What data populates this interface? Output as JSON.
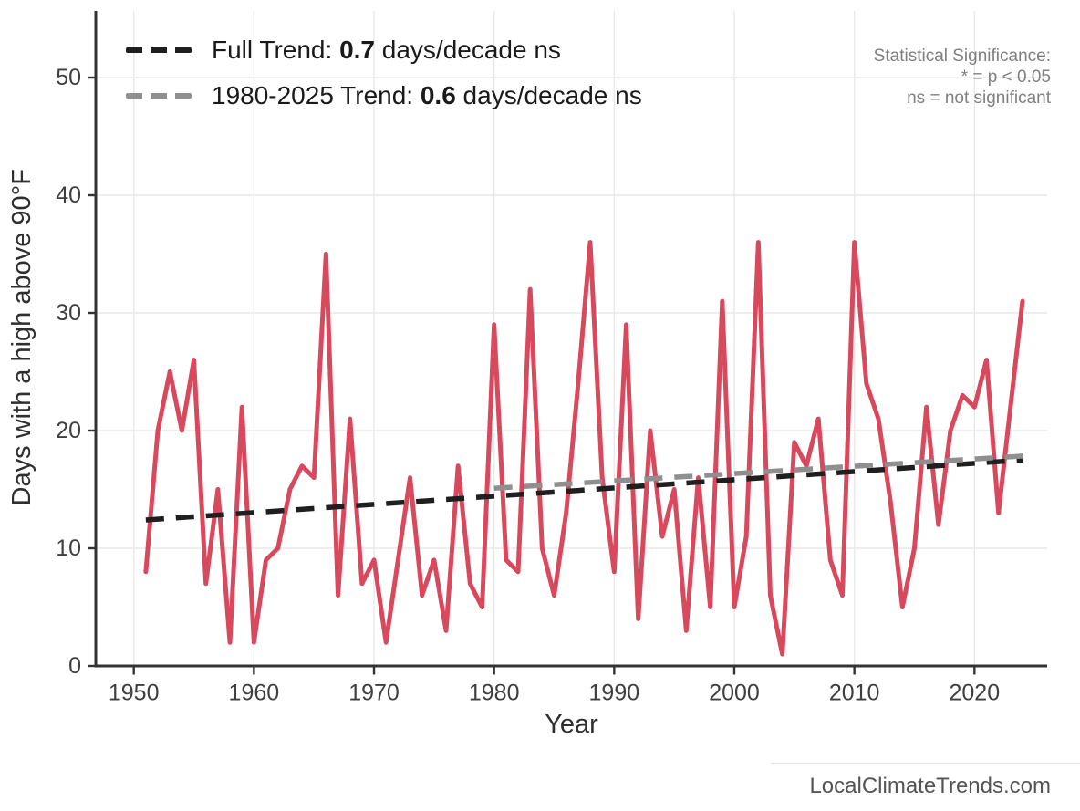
{
  "legend": {
    "items": [
      {
        "prefix": "Full Trend: ",
        "value": "0.7",
        "suffix": " days/decade ns",
        "color": "#1F1F1F"
      },
      {
        "prefix": "1980-2025 Trend: ",
        "value": "0.6",
        "suffix": " days/decade ns",
        "color": "#8F8F8F"
      }
    ]
  },
  "stat_note": {
    "lines": [
      "Statistical Significance:",
      "* = p < 0.05",
      "ns = not significant"
    ]
  },
  "watermark": {
    "text": "LocalClimateTrends.com"
  },
  "colors": {
    "series": "#D8495E",
    "trend_full": "#1F1F1F",
    "trend_recent": "#8F8F8F",
    "axis": "#333333",
    "grid": "#E9E9E9",
    "tick_text": "#3F3F3F"
  },
  "chart_data": {
    "type": "line",
    "title": "",
    "xlabel": "Year",
    "ylabel": "Days with a high above 90°F",
    "x_ticks": [
      1950,
      1960,
      1970,
      1980,
      1990,
      2000,
      2010,
      2020
    ],
    "y_ticks": [
      0,
      10,
      20,
      30,
      40,
      50
    ],
    "xlim": [
      1947,
      2027
    ],
    "ylim": [
      0,
      55
    ],
    "grid": "on",
    "legend_position": "top-left",
    "series_name": "Days with a high above 90°F",
    "start_year": 1951,
    "years": [
      1951,
      1952,
      1953,
      1954,
      1955,
      1956,
      1957,
      1958,
      1959,
      1960,
      1961,
      1962,
      1963,
      1964,
      1965,
      1966,
      1967,
      1968,
      1969,
      1970,
      1971,
      1972,
      1973,
      1974,
      1975,
      1976,
      1977,
      1978,
      1979,
      1980,
      1981,
      1982,
      1983,
      1984,
      1985,
      1986,
      1987,
      1988,
      1989,
      1990,
      1991,
      1992,
      1993,
      1994,
      1995,
      1996,
      1997,
      1998,
      1999,
      2000,
      2001,
      2002,
      2003,
      2004,
      2005,
      2006,
      2007,
      2008,
      2009,
      2010,
      2011,
      2012,
      2013,
      2014,
      2015,
      2016,
      2017,
      2018,
      2019,
      2020,
      2021,
      2022,
      2023,
      2024
    ],
    "values": [
      8,
      20,
      25,
      20,
      26,
      7,
      15,
      2,
      22,
      2,
      9,
      10,
      15,
      17,
      16,
      35,
      6,
      21,
      7,
      9,
      2,
      9,
      16,
      6,
      9,
      3,
      17,
      7,
      5,
      29,
      9,
      8,
      32,
      10,
      6,
      13,
      24,
      36,
      16,
      8,
      29,
      4,
      20,
      11,
      15,
      3,
      16,
      5,
      31,
      5,
      11,
      36,
      6,
      1,
      19,
      17,
      21,
      9,
      6,
      36,
      24,
      21,
      14,
      5,
      10,
      22,
      12,
      20,
      23,
      22,
      26,
      13,
      22,
      31
    ],
    "trends": [
      {
        "label": "Full Trend",
        "rate_per_decade": 0.7,
        "significance": "ns",
        "start_year": 1951,
        "start_value": 12.4,
        "end_year": 2024,
        "end_value": 17.5,
        "color": "#1F1F1F"
      },
      {
        "label": "1980-2025 Trend",
        "rate_per_decade": 0.6,
        "significance": "ns",
        "start_year": 1980,
        "start_value": 15.1,
        "end_year": 2025,
        "end_value": 17.9,
        "color": "#8F8F8F"
      }
    ]
  }
}
